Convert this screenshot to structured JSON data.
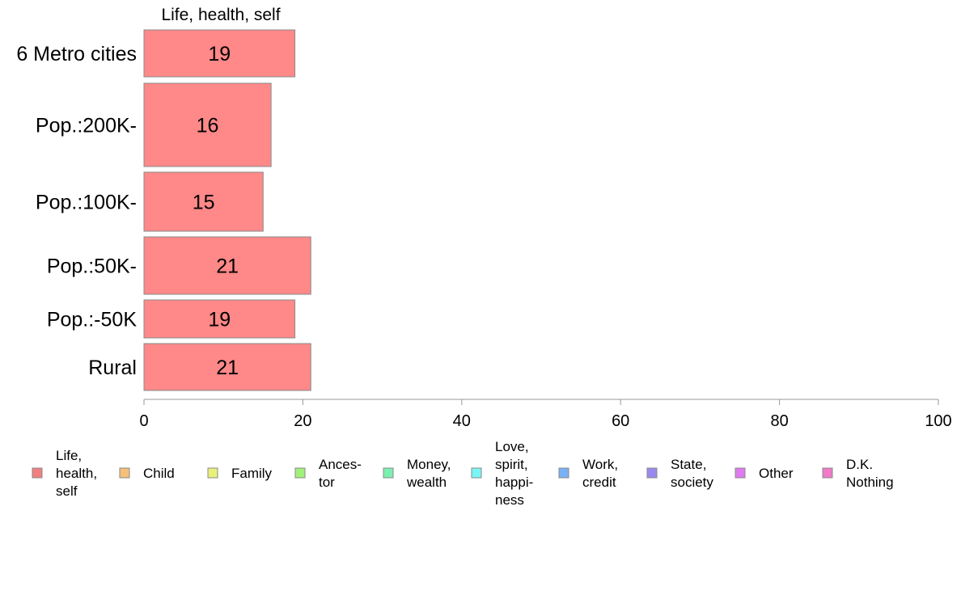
{
  "chart_data": {
    "type": "bar",
    "orientation": "horizontal",
    "series_title": "Life, health, self",
    "categories": [
      "6 Metro cities",
      "Pop.:200K-",
      "Pop.:100K-",
      "Pop.:50K-",
      "Pop.:-50K",
      "Rural"
    ],
    "series": [
      {
        "name": "Life, health, self",
        "values": [
          19,
          16,
          15,
          21,
          19,
          21
        ],
        "color": "#ff8888"
      }
    ],
    "xlim": [
      0,
      100
    ],
    "xticks": [
      0,
      20,
      40,
      60,
      80,
      100
    ],
    "grid": false,
    "legend_position": "bottom",
    "legend": [
      {
        "label": "Life,\nhealth,\nself",
        "color": "#f08080"
      },
      {
        "label": "Child",
        "color": "#f5c07a"
      },
      {
        "label": "Family",
        "color": "#e8f07a"
      },
      {
        "label": "Ances-\ntor",
        "color": "#a0f07a"
      },
      {
        "label": "Money,\nwealth",
        "color": "#7af0b0"
      },
      {
        "label": "Love,\nspirit,\nhappi-\nness",
        "color": "#7af5f5"
      },
      {
        "label": "Work,\ncredit",
        "color": "#7ab0f5"
      },
      {
        "label": "State,\nsociety",
        "color": "#9a8af0"
      },
      {
        "label": "Other",
        "color": "#e07af0"
      },
      {
        "label": "D.K.\nNothing",
        "color": "#f07ac8"
      }
    ]
  }
}
